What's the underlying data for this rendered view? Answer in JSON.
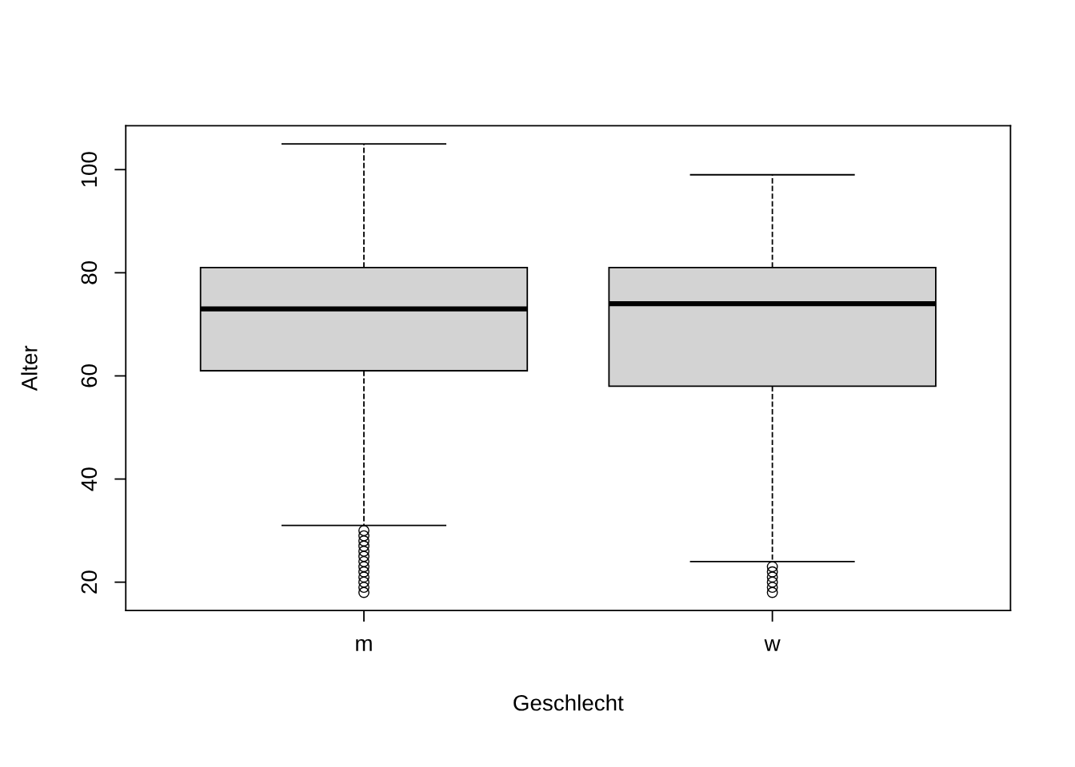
{
  "chart_data": {
    "type": "box",
    "xlabel": "Geschlecht",
    "ylabel": "Alter",
    "categories": [
      "m",
      "w"
    ],
    "boxes": [
      {
        "low": 31,
        "q1": 61,
        "median": 73,
        "q3": 81,
        "high": 105,
        "outliers": [
          18,
          19,
          20,
          21,
          22,
          23,
          24,
          25,
          26,
          27,
          28,
          29,
          30
        ]
      },
      {
        "low": 24,
        "q1": 58,
        "median": 74,
        "q3": 81,
        "high": 99,
        "outliers": [
          18,
          19,
          20,
          21,
          22,
          23
        ]
      }
    ],
    "color": "#d3d3d3",
    "ylim": [
      14.5,
      108.5
    ],
    "yticks": [
      20,
      40,
      60,
      80,
      100
    ],
    "grid": false,
    "legend": false,
    "line_style": "dashed",
    "marker": "circle"
  }
}
